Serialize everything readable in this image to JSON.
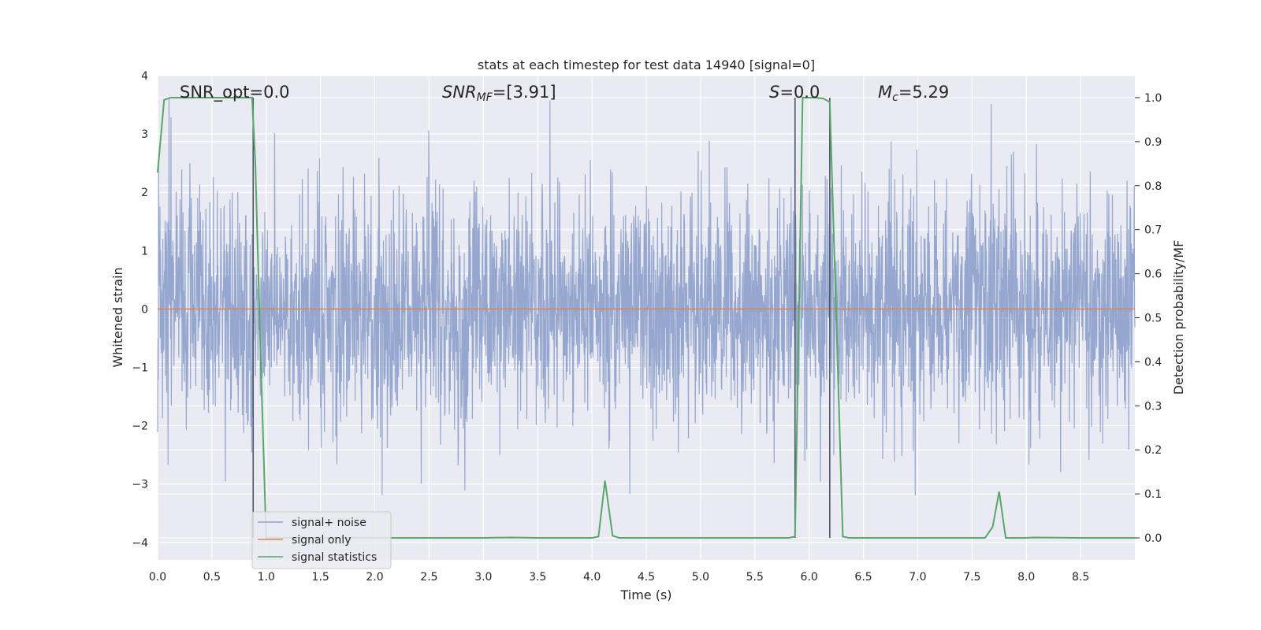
{
  "chart_data": {
    "type": "line",
    "title": "stats at each timestep for test data 14940 [signal=0]",
    "xlabel": "Time (s)",
    "ylabel": "Whitened strain",
    "y2label": "Detection probability/MF",
    "xlim": [
      0.0,
      9.0
    ],
    "ylim": [
      -4.3,
      4.0
    ],
    "y2lim": [
      -0.05,
      1.05
    ],
    "xticks": [
      "0.0",
      "0.5",
      "1.0",
      "1.5",
      "2.0",
      "2.5",
      "3.0",
      "3.5",
      "4.0",
      "4.5",
      "5.0",
      "5.5",
      "6.0",
      "6.5",
      "7.0",
      "7.5",
      "8.0",
      "8.5"
    ],
    "yticks": [
      "−4",
      "−3",
      "−2",
      "−1",
      "0",
      "1",
      "2",
      "3",
      "4"
    ],
    "y2ticks": [
      "0.0",
      "0.1",
      "0.2",
      "0.3",
      "0.4",
      "0.5",
      "0.6",
      "0.7",
      "0.8",
      "0.9",
      "1.0"
    ],
    "grid": true,
    "legend_position": "lower-left",
    "annotations": {
      "snr_opt": "SNR_opt=0.0",
      "snr_mf_main": "SNR",
      "snr_mf_sub": "MF",
      "snr_mf_value": "=[3.91]",
      "s_main": "S",
      "s_value": "=0.0",
      "mc_main": "M",
      "mc_sub": "c",
      "mc_value": "=5.29"
    },
    "vertical_lines_x": [
      0.88,
      5.87,
      6.19
    ],
    "series": [
      {
        "name": "signal+ noise",
        "axis": "left",
        "color": "#8da0cb",
        "description": "whitened noise approximately gaussian, range about -3.9 to 3.6"
      },
      {
        "name": "signal only",
        "axis": "left",
        "color": "#dd8452",
        "x": [
          0.0,
          9.0
        ],
        "y": [
          0.0,
          0.0
        ]
      },
      {
        "name": "signal statistics",
        "axis": "right",
        "color": "#55a868",
        "x": [
          0.0,
          0.06,
          0.12,
          0.25,
          0.5,
          0.75,
          0.87,
          0.9,
          0.95,
          1.0,
          1.5,
          2.0,
          2.5,
          3.0,
          3.25,
          3.5,
          4.0,
          4.06,
          4.12,
          4.19,
          4.25,
          4.5,
          5.0,
          5.5,
          5.81,
          5.87,
          5.94,
          6.0,
          6.06,
          6.13,
          6.19,
          6.25,
          6.31,
          6.37,
          6.5,
          7.0,
          7.5,
          7.62,
          7.69,
          7.75,
          7.81,
          8.0,
          8.06,
          8.5,
          9.0
        ],
        "y": [
          0.83,
          0.995,
          1.0,
          1.0,
          1.0,
          1.0,
          1.0,
          0.85,
          0.4,
          0.0,
          0.0,
          0.0,
          0.0,
          0.0,
          0.001,
          0.0,
          0.0,
          0.003,
          0.13,
          0.005,
          0.0,
          0.0,
          0.0,
          0.0,
          0.0,
          0.003,
          1.0,
          1.0,
          1.0,
          0.998,
          0.99,
          0.5,
          0.003,
          0.0,
          0.0,
          0.0,
          0.0,
          0.0,
          0.025,
          0.105,
          0.0,
          0.0,
          0.001,
          0.0,
          0.0
        ]
      }
    ]
  }
}
